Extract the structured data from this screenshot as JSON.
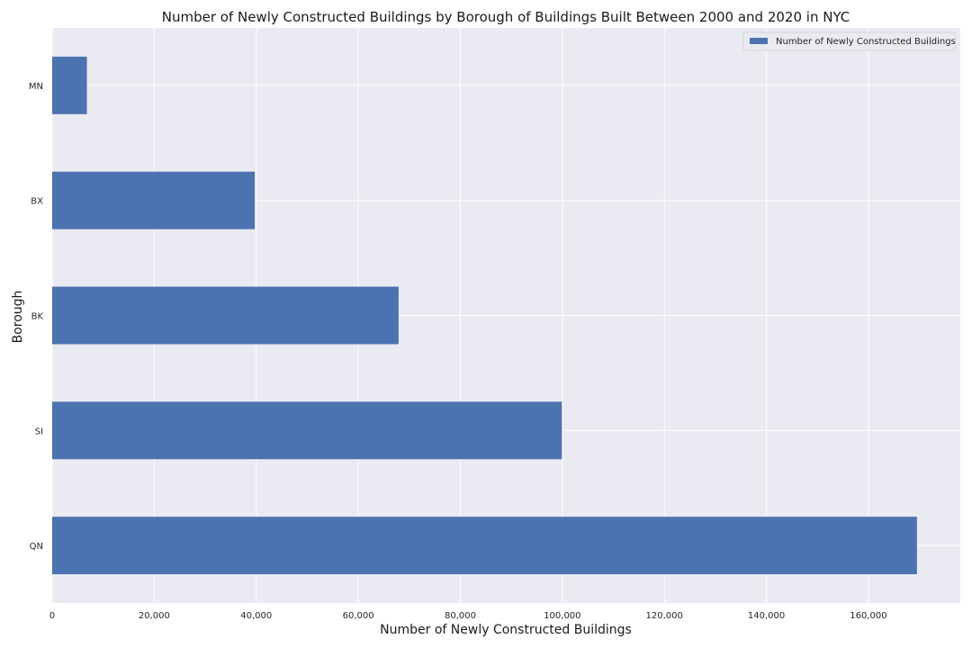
{
  "chart_data": {
    "type": "bar",
    "orientation": "horizontal",
    "title": "Number of Newly Constructed Buildings by Borough of Buildings Built Between 2000 and 2020 in NYC",
    "xlabel": "Number of Newly Constructed Buildings",
    "ylabel": "Borough",
    "categories": [
      "QN",
      "SI",
      "BK",
      "BX",
      "MN"
    ],
    "series": [
      {
        "name": "Number of Newly Constructed Buildings",
        "values": [
          169500,
          99900,
          67900,
          39700,
          6800
        ],
        "color": "#4c72b0"
      }
    ],
    "xlim": [
      0,
      178000
    ],
    "xticks": [
      0,
      20000,
      40000,
      60000,
      80000,
      100000,
      120000,
      140000,
      160000
    ],
    "xtick_labels": [
      "0",
      "20,000",
      "40,000",
      "60,000",
      "80,000",
      "100,000",
      "120,000",
      "140,000",
      "160,000"
    ],
    "grid": true,
    "legend_position": "top-right",
    "style": {
      "plot_background": "#eaeaf2",
      "grid_color": "#ffffff"
    }
  }
}
